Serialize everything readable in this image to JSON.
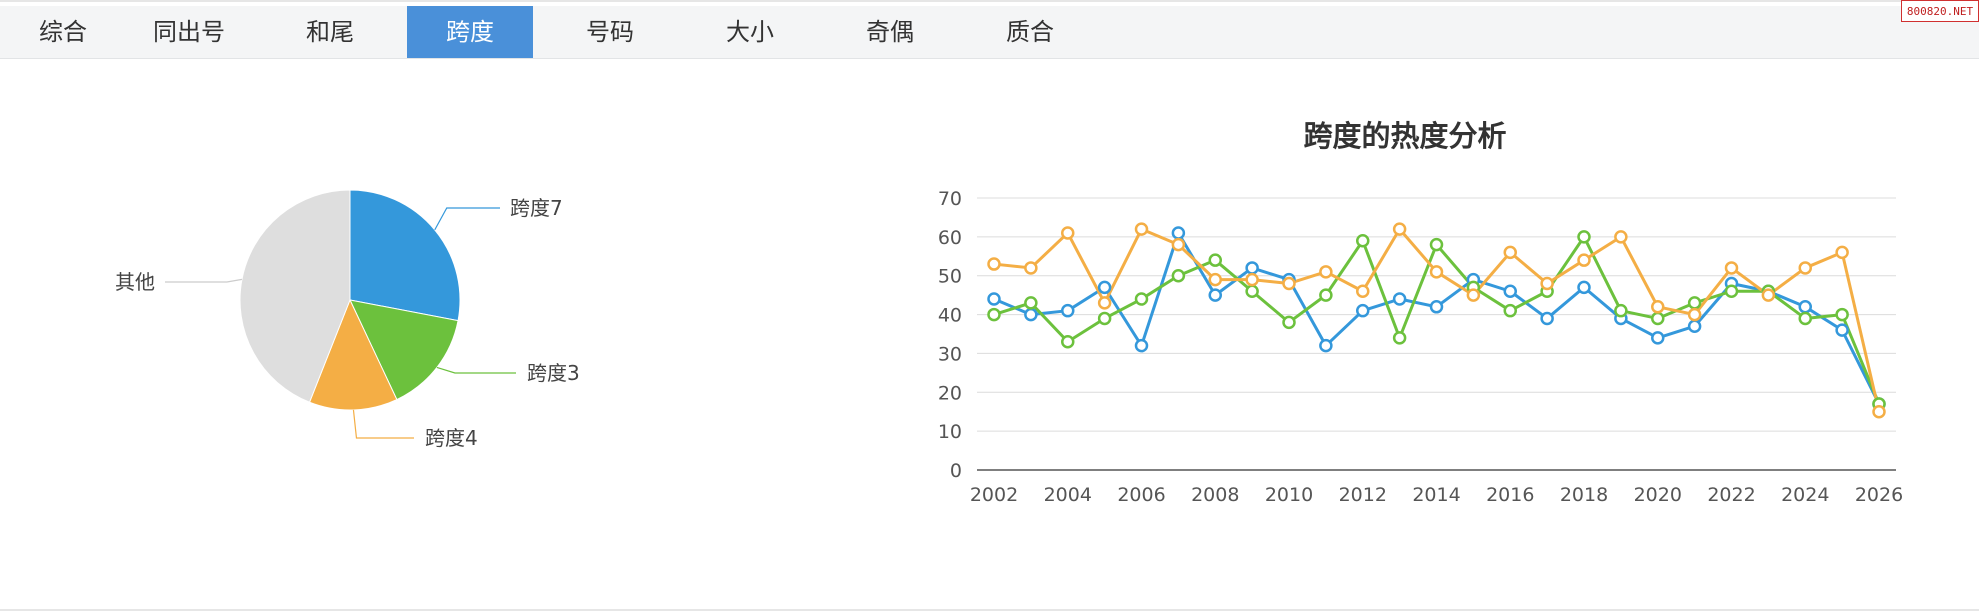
{
  "tabs": [
    {
      "label": "综合",
      "active": false
    },
    {
      "label": "同出号",
      "active": false
    },
    {
      "label": "和尾",
      "active": false
    },
    {
      "label": "跨度",
      "active": true
    },
    {
      "label": "号码",
      "active": false
    },
    {
      "label": "大小",
      "active": false
    },
    {
      "label": "奇偶",
      "active": false
    },
    {
      "label": "质合",
      "active": false
    }
  ],
  "watermark": "800820.NET",
  "colors": {
    "blue": "#3498db",
    "green": "#6cc13d",
    "orange": "#f4ae45",
    "gray": "#dedede",
    "tab_active": "#4a90d9"
  },
  "chart_data": [
    {
      "type": "pie",
      "slices": [
        {
          "label": "跨度7",
          "value": 28,
          "color": "#3498db"
        },
        {
          "label": "跨度3",
          "value": 15,
          "color": "#6cc13d"
        },
        {
          "label": "跨度4",
          "value": 13,
          "color": "#f4ae45"
        },
        {
          "label": "其他",
          "value": 44,
          "color": "#dedede"
        }
      ]
    },
    {
      "type": "line",
      "title": "跨度的热度分析",
      "x": [
        2002,
        2003,
        2004,
        2005,
        2006,
        2007,
        2008,
        2009,
        2010,
        2011,
        2012,
        2013,
        2014,
        2015,
        2016,
        2017,
        2018,
        2019,
        2020,
        2021,
        2022,
        2023,
        2024,
        2025,
        2026
      ],
      "xticks": [
        "2002",
        "2004",
        "2006",
        "2008",
        "2010",
        "2012",
        "2014",
        "2016",
        "2018",
        "2020",
        "2022",
        "2024",
        "2026"
      ],
      "yticks": [
        "0",
        "10",
        "20",
        "30",
        "40",
        "50",
        "60",
        "70"
      ],
      "ylim": [
        0,
        70
      ],
      "grid": true,
      "series": [
        {
          "color": "#3498db",
          "values": [
            44,
            40,
            41,
            47,
            32,
            61,
            45,
            52,
            49,
            32,
            41,
            44,
            42,
            49,
            46,
            39,
            47,
            39,
            34,
            37,
            48,
            46,
            42,
            36,
            17
          ]
        },
        {
          "color": "#6cc13d",
          "values": [
            40,
            43,
            33,
            39,
            44,
            50,
            54,
            46,
            38,
            45,
            59,
            34,
            58,
            47,
            41,
            46,
            60,
            41,
            39,
            43,
            46,
            46,
            39,
            40,
            17
          ]
        },
        {
          "color": "#f4ae45",
          "values": [
            53,
            52,
            61,
            43,
            62,
            58,
            49,
            49,
            48,
            51,
            46,
            62,
            51,
            45,
            56,
            48,
            54,
            60,
            42,
            40,
            52,
            45,
            52,
            56,
            15
          ]
        }
      ]
    }
  ]
}
